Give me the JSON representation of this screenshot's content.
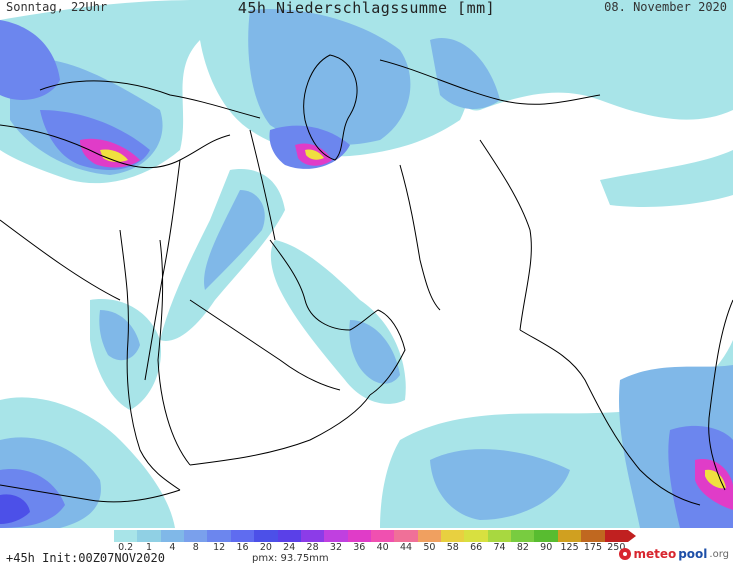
{
  "header": {
    "left": "Sonntag, 22Uhr",
    "title": "45h Niederschlagssumme [mm]",
    "right": "08. November 2020"
  },
  "footer": {
    "run": "+45h Init:00Z07NOV2020",
    "pmx": "pmx: 93.75mm",
    "logo_a": "meteo",
    "logo_b": "pool",
    "logo_c": ".org"
  },
  "legend": {
    "labels": [
      "0.2",
      "1",
      "4",
      "8",
      "12",
      "16",
      "20",
      "24",
      "28",
      "32",
      "36",
      "40",
      "44",
      "50",
      "58",
      "66",
      "74",
      "82",
      "90",
      "125",
      "175",
      "250"
    ],
    "colors": [
      "#a8e4e8",
      "#90d0e4",
      "#80b8e8",
      "#7aa0ec",
      "#6c86ee",
      "#5f6cf0",
      "#4c50e8",
      "#5a40e8",
      "#8c3ce8",
      "#c040e0",
      "#e03cc8",
      "#f050b0",
      "#f07098",
      "#f0a060",
      "#e8d040",
      "#d8e040",
      "#a8d840",
      "#78cc40",
      "#58bc30",
      "#d0a020",
      "#c06820",
      "#c02020"
    ]
  },
  "map_colors": {
    "light": "#a8e4e8",
    "mid": "#80b8e8",
    "blue": "#6c86ee",
    "violet": "#4c50e8",
    "magenta": "#e03cc8",
    "yellow": "#f0e040",
    "border": "#000000"
  }
}
